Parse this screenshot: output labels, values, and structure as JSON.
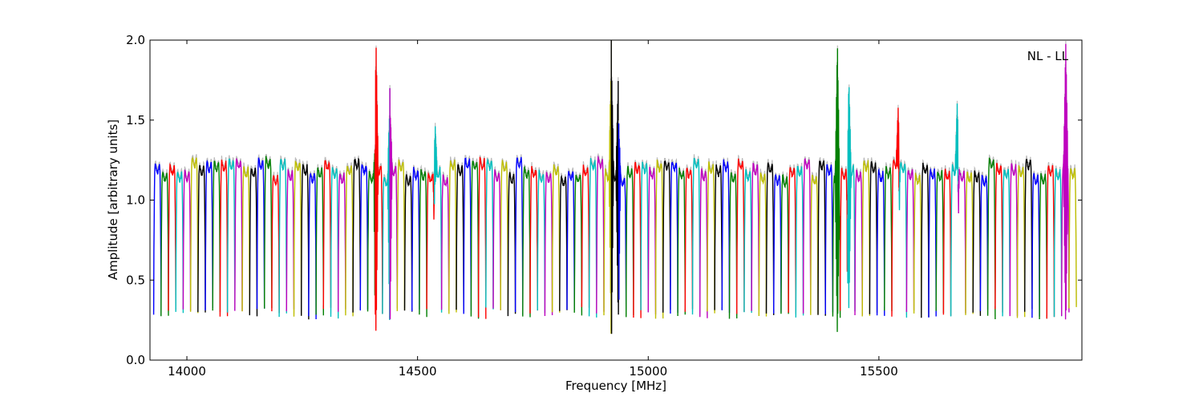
{
  "chart_data": {
    "type": "line",
    "xlabel": "Frequency [MHz]",
    "ylabel": "Amplitude [arbitrary units]",
    "annotation": "NL - LL",
    "annotation_position": "top-right",
    "xlim": [
      13920,
      15940
    ],
    "ylim": [
      0,
      2
    ],
    "xticks": [
      14000,
      14500,
      15000,
      15500
    ],
    "yticks": [
      0,
      0.5,
      1,
      1.5,
      2
    ],
    "ytick_labels": [
      "0.0",
      "0.5",
      "1.0",
      "1.5",
      "2.0"
    ],
    "grid": false,
    "legend": "none",
    "background_trace_color": "#bbbbbb",
    "color_cycle": [
      "#0000ff",
      "#008000",
      "#ff0000",
      "#00bfbf",
      "#bf00bf",
      "#bfbf00",
      "#000000"
    ],
    "channel_width_mhz": 16,
    "first_channel_start_mhz": 13928,
    "channel_count": 125,
    "channel_plateau_level": 1.18,
    "channel_edge_minimum": 0.28,
    "rfi_features": [
      {
        "x": 14410,
        "y_max": 2.0,
        "y_min": 0.13
      },
      {
        "x": 14440,
        "y_max": 1.7,
        "y_min": 0.2
      },
      {
        "x": 14538,
        "y_max": 1.48,
        "y_min": 1.1
      },
      {
        "x": 14920,
        "y_max": 2.0,
        "y_min": 0.1
      },
      {
        "x": 14935,
        "y_max": 1.77,
        "y_min": 0.25
      },
      {
        "x": 15410,
        "y_max": 2.0,
        "y_min": 0.12
      },
      {
        "x": 15435,
        "y_max": 1.75,
        "y_min": 0.3
      },
      {
        "x": 15542,
        "y_max": 1.6,
        "y_min": 1.2
      },
      {
        "x": 15670,
        "y_max": 1.63,
        "y_min": 1.2
      },
      {
        "x": 15905,
        "y_max": 2.0,
        "y_min": 0.17
      }
    ]
  }
}
